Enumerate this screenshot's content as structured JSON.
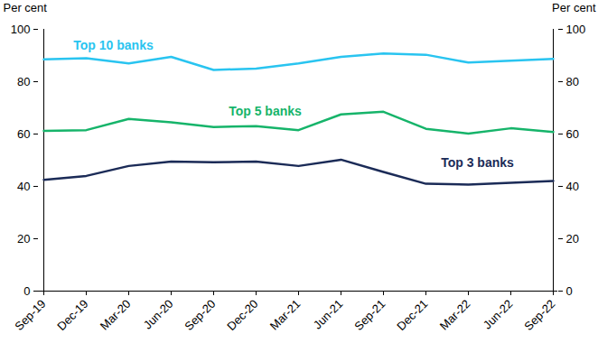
{
  "chart_data": {
    "type": "line",
    "x": [
      "Sep-19",
      "Dec-19",
      "Mar-20",
      "Jun-20",
      "Sep-20",
      "Dec-20",
      "Mar-21",
      "Jun-21",
      "Sep-21",
      "Dec-21",
      "Mar-22",
      "Jun-22",
      "Sep-22"
    ],
    "series": [
      {
        "name": "Top 10 banks",
        "color": "#29c4f0",
        "values": [
          88.5,
          89,
          87,
          89.5,
          84.5,
          85,
          87,
          89.5,
          90.8,
          90.3,
          87.3,
          88,
          88.7
        ]
      },
      {
        "name": "Top 5 banks",
        "color": "#16b46a",
        "values": [
          61.2,
          61.5,
          65.8,
          64.5,
          62.7,
          63,
          61.5,
          67.5,
          68.5,
          62,
          60.2,
          62.2,
          60.8
        ]
      },
      {
        "name": "Top 3 banks",
        "color": "#1b2b57",
        "values": [
          42.5,
          44,
          47.8,
          49.5,
          49.2,
          49.5,
          47.8,
          50.2,
          45.5,
          41,
          40.7,
          41.4,
          42.1
        ]
      }
    ],
    "ylabel": "Per cent",
    "ylim": [
      0,
      100
    ],
    "yticks": [
      0,
      20,
      40,
      60,
      80,
      100
    ],
    "y2label": "Per cent",
    "y2lim": [
      0,
      100
    ],
    "y2ticks": [
      0,
      20,
      40,
      60,
      80,
      100
    ],
    "grid": false
  }
}
